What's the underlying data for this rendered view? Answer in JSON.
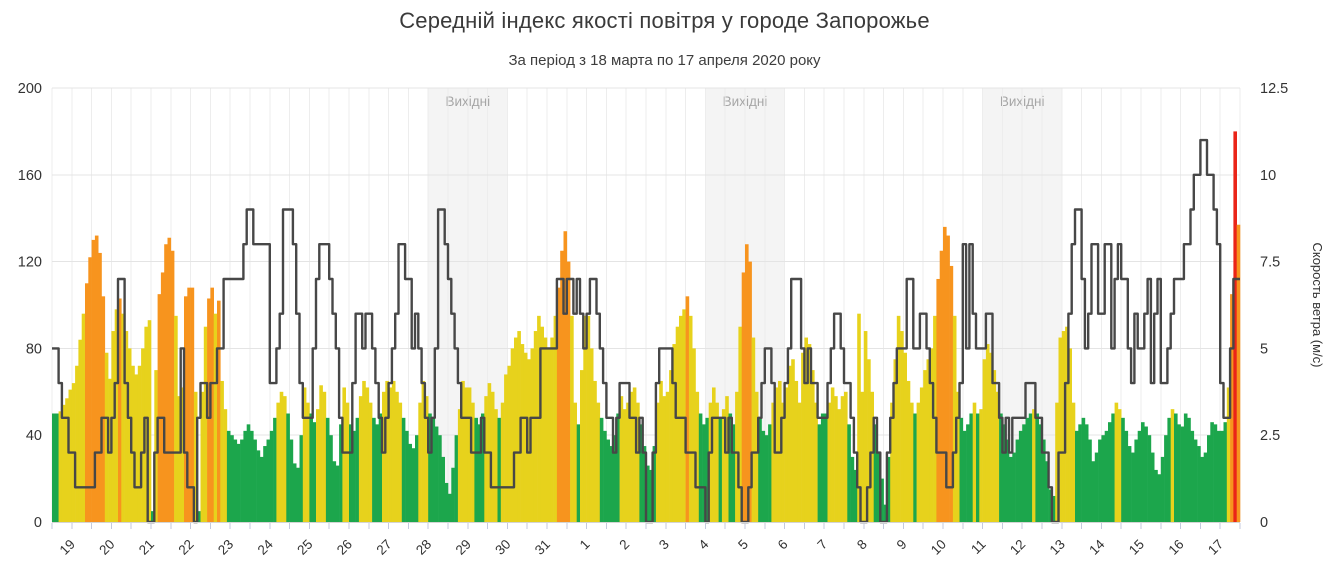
{
  "colors": {
    "title": "#3a3a3a",
    "wind_line": "#474747",
    "weekend_band": "#e9e9e9",
    "weekend_label": "#a6a6a6",
    "grid_horizontal": "#e4e4e4",
    "grid_vertical": "#ededed",
    "axis_line": "#d4d4d4",
    "tick_mark": "#c4cade",
    "tick_label": "#333333",
    "aqi_good": "#1ca64c",
    "aqi_moderate": "#e7d21c",
    "aqi_high": "#f7941e",
    "aqi_very_high": "#ea2418"
  },
  "chart_data": {
    "type": "bar",
    "title": "Середній індекс якості повітря у городе Запорожье",
    "subtitle": "За період з 18 марта по 17 апреля 2020 року",
    "x_axis": {
      "start": "2020-03-18 12:00",
      "end": "2020-04-17 12:00",
      "step_hours": 2,
      "total_hours": 720,
      "tick_labels": [
        "19",
        "20",
        "21",
        "22",
        "23",
        "24",
        "25",
        "26",
        "27",
        "28",
        "29",
        "30",
        "31",
        "1",
        "2",
        "3",
        "4",
        "5",
        "6",
        "7",
        "8",
        "9",
        "10",
        "11",
        "12",
        "13",
        "14",
        "15",
        "16",
        "17"
      ],
      "first_label_offset_hours": 12,
      "label_every_hours": 24,
      "minor_tick_every_hours": 12
    },
    "y_left": {
      "range": [
        0,
        200
      ],
      "ticks": [
        "0",
        "40",
        "80",
        "120",
        "160",
        "200"
      ]
    },
    "y_right": {
      "range": [
        0,
        12.5
      ],
      "ticks": [
        "0",
        "2.5",
        "5",
        "7.5",
        "10",
        "12.5"
      ],
      "title": "Скорость ветра (м/с)"
    },
    "weekend_bands": {
      "label": "Вихідні",
      "ranges_hours": [
        [
          228,
          276
        ],
        [
          396,
          444
        ],
        [
          564,
          612
        ]
      ]
    },
    "bar_color_scale": [
      {
        "max": 50,
        "color_key": "aqi_good"
      },
      {
        "max": 100,
        "color_key": "aqi_moderate"
      },
      {
        "max": 150,
        "color_key": "aqi_high"
      },
      {
        "max": 1000,
        "color_key": "aqi_very_high"
      }
    ],
    "series": [
      {
        "name": "Індекс якості повітря",
        "type": "bar",
        "axis": "left",
        "values": [
          50,
          50,
          51,
          54,
          57,
          61,
          64,
          72,
          84,
          96,
          110,
          122,
          130,
          132,
          124,
          104,
          78,
          66,
          88,
          98,
          103,
          96,
          88,
          80,
          72,
          68,
          72,
          80,
          90,
          93,
          5,
          70,
          105,
          115,
          128,
          131,
          125,
          95,
          58,
          62,
          104,
          108,
          108,
          60,
          5,
          60,
          90,
          103,
          108,
          96,
          102,
          65,
          52,
          42,
          40,
          38,
          36,
          38,
          42,
          45,
          42,
          38,
          33,
          30,
          35,
          38,
          42,
          48,
          55,
          60,
          58,
          50,
          38,
          27,
          25,
          40,
          62,
          55,
          50,
          46,
          52,
          63,
          60,
          48,
          40,
          28,
          26,
          45,
          62,
          55,
          45,
          42,
          48,
          58,
          65,
          62,
          55,
          48,
          45,
          50,
          60,
          65,
          62,
          65,
          60,
          55,
          48,
          42,
          36,
          34,
          40,
          55,
          65,
          58,
          50,
          48,
          44,
          40,
          30,
          18,
          13,
          25,
          40,
          52,
          65,
          62,
          62,
          55,
          48,
          45,
          50,
          58,
          64,
          60,
          52,
          48,
          55,
          68,
          72,
          80,
          85,
          88,
          82,
          78,
          75,
          80,
          88,
          95,
          90,
          85,
          80,
          85,
          95,
          108,
          125,
          134,
          120,
          95,
          55,
          45,
          70,
          95,
          95,
          80,
          65,
          55,
          48,
          42,
          38,
          35,
          40,
          50,
          58,
          52,
          55,
          60,
          62,
          55,
          45,
          35,
          26,
          24,
          35,
          55,
          65,
          58,
          60,
          70,
          82,
          90,
          95,
          98,
          104,
          95,
          80,
          60,
          50,
          45,
          48,
          55,
          62,
          55,
          48,
          52,
          58,
          50,
          45,
          60,
          90,
          115,
          128,
          120,
          85,
          60,
          48,
          42,
          40,
          45,
          55,
          62,
          65,
          55,
          62,
          72,
          75,
          65,
          55,
          78,
          85,
          82,
          70,
          55,
          45,
          50,
          50,
          55,
          62,
          58,
          52,
          58,
          60,
          45,
          30,
          24,
          96,
          60,
          88,
          75,
          60,
          45,
          32,
          20,
          8,
          30,
          55,
          75,
          95,
          88,
          78,
          65,
          55,
          50,
          55,
          62,
          70,
          75,
          80,
          95,
          112,
          125,
          136,
          132,
          118,
          95,
          60,
          48,
          42,
          45,
          50,
          55,
          50,
          52,
          75,
          82,
          78,
          70,
          60,
          50,
          45,
          38,
          30,
          32,
          38,
          42,
          45,
          48,
          50,
          52,
          50,
          45,
          38,
          28,
          15,
          12,
          55,
          85,
          88,
          90,
          80,
          55,
          42,
          45,
          48,
          45,
          38,
          28,
          32,
          38,
          40,
          42,
          46,
          50,
          55,
          52,
          48,
          42,
          35,
          32,
          38,
          42,
          46,
          44,
          40,
          32,
          24,
          22,
          30,
          40,
          48,
          52,
          50,
          45,
          44,
          50,
          48,
          42,
          38,
          35,
          30,
          32,
          40,
          46,
          45,
          42,
          42,
          46,
          62,
          105,
          180,
          137
        ]
      },
      {
        "name": "Скорость ветра",
        "type": "line",
        "axis": "right",
        "values": [
          5,
          5,
          4,
          3,
          3,
          2,
          2,
          1,
          1,
          1,
          1,
          1,
          1,
          2,
          2,
          3,
          3,
          2,
          3,
          4,
          7,
          7,
          4,
          3,
          2,
          1,
          1,
          2,
          3,
          0,
          0,
          2,
          3,
          3,
          2,
          2,
          2,
          2,
          2,
          5,
          2,
          1,
          1,
          0,
          3,
          4,
          4,
          3,
          4,
          4,
          5,
          5,
          7,
          7,
          7,
          7,
          7,
          7,
          8,
          9,
          9,
          8,
          8,
          8,
          8,
          8,
          4,
          4,
          5,
          6,
          9,
          9,
          9,
          8,
          6,
          4,
          3,
          3,
          3,
          5,
          7,
          8,
          8,
          8,
          7,
          6,
          5,
          3,
          2,
          2,
          2,
          4,
          6,
          6,
          5,
          6,
          6,
          5,
          4,
          3,
          2,
          3,
          4,
          5,
          6,
          8,
          8,
          7,
          7,
          5,
          6,
          5,
          4,
          3,
          2,
          3,
          5,
          9,
          9,
          8,
          7,
          6,
          5,
          4,
          3,
          3,
          3,
          2,
          2,
          2,
          3,
          2,
          2,
          1,
          1,
          1,
          1,
          1,
          1,
          1,
          2,
          2,
          3,
          3,
          2,
          3,
          3,
          3,
          5,
          5,
          5,
          5,
          5,
          7,
          7,
          6,
          7,
          7,
          6,
          7,
          6,
          5,
          6,
          7,
          7,
          6,
          5,
          4,
          3,
          3,
          2,
          3,
          4,
          4,
          4,
          3,
          3,
          2,
          3,
          2,
          0,
          0,
          2,
          4,
          5,
          5,
          5,
          5,
          4,
          3,
          3,
          3,
          2,
          2,
          2,
          1,
          1,
          1,
          0,
          2,
          3,
          3,
          3,
          3,
          2,
          3,
          2,
          2,
          1,
          0,
          0,
          1,
          2,
          2,
          3,
          4,
          5,
          5,
          4,
          2,
          2,
          3,
          4,
          5,
          7,
          7,
          7,
          5,
          4,
          5,
          4,
          4,
          3,
          3,
          3,
          4,
          5,
          6,
          6,
          5,
          4,
          4,
          3,
          2,
          1,
          0,
          0,
          1,
          2,
          3,
          2,
          0,
          0,
          2,
          3,
          4,
          5,
          5,
          5,
          7,
          7,
          5,
          5,
          6,
          6,
          5,
          4,
          3,
          2,
          2,
          2,
          1,
          1,
          2,
          3,
          4,
          8,
          5,
          8,
          6,
          5,
          5,
          5,
          6,
          6,
          4,
          4,
          3,
          2,
          3,
          2,
          3,
          3,
          3,
          3,
          4,
          4,
          4,
          3,
          3,
          2,
          2,
          1,
          0,
          0,
          2,
          2,
          4,
          6,
          8,
          9,
          9,
          7,
          5,
          6,
          8,
          8,
          6,
          6,
          8,
          8,
          5,
          7,
          8,
          7,
          7,
          5,
          4,
          6,
          5,
          5,
          6,
          7,
          4,
          6,
          7,
          4,
          4,
          5,
          6,
          7,
          7,
          7,
          8,
          8,
          9,
          10,
          10,
          11,
          11,
          10,
          10,
          9,
          8,
          4,
          3,
          3,
          5,
          7,
          7
        ]
      }
    ]
  }
}
